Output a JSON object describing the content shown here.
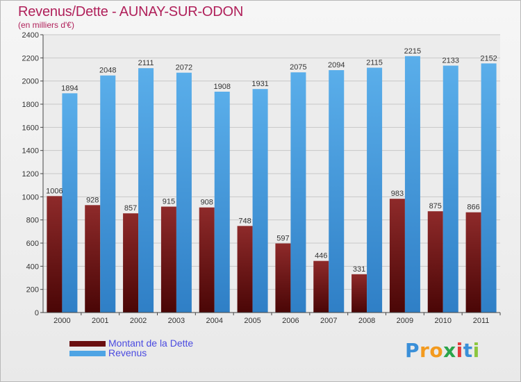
{
  "colors": {
    "debt": "#7a1a1a",
    "revenue": "#4ea4e4",
    "title": "#b0205a",
    "legend_text": "#4a4ae0"
  },
  "chart_data": {
    "type": "bar",
    "title": "Revenus/Dette - AUNAY-SUR-ODON",
    "subtitle": "(en milliers d'€)",
    "categories": [
      "2000",
      "2001",
      "2002",
      "2003",
      "2004",
      "2005",
      "2006",
      "2007",
      "2008",
      "2009",
      "2010",
      "2011"
    ],
    "series": [
      {
        "name": "Montant de la Dette",
        "values": [
          1006,
          928,
          857,
          915,
          908,
          748,
          597,
          446,
          331,
          983,
          875,
          866
        ]
      },
      {
        "name": "Revenus",
        "values": [
          1894,
          2048,
          2111,
          2072,
          1908,
          1931,
          2075,
          2094,
          2115,
          2215,
          2133,
          2152
        ]
      }
    ],
    "ylim": [
      0,
      2400
    ],
    "yticks": [
      "0",
      "200",
      "400",
      "600",
      "800",
      "1000",
      "1200",
      "1400",
      "1600",
      "1800",
      "2000",
      "2200",
      "2400"
    ],
    "grid": true,
    "legend": "bottom-left"
  },
  "logo": {
    "letters": [
      "P",
      "r",
      "o",
      "x",
      "i",
      "t",
      "i"
    ],
    "colors": [
      "#3a8fd8",
      "#f39a1e",
      "#f39a1e",
      "#2aa44a",
      "#e23b3b",
      "#3a8fd8",
      "#8cc63f"
    ]
  }
}
